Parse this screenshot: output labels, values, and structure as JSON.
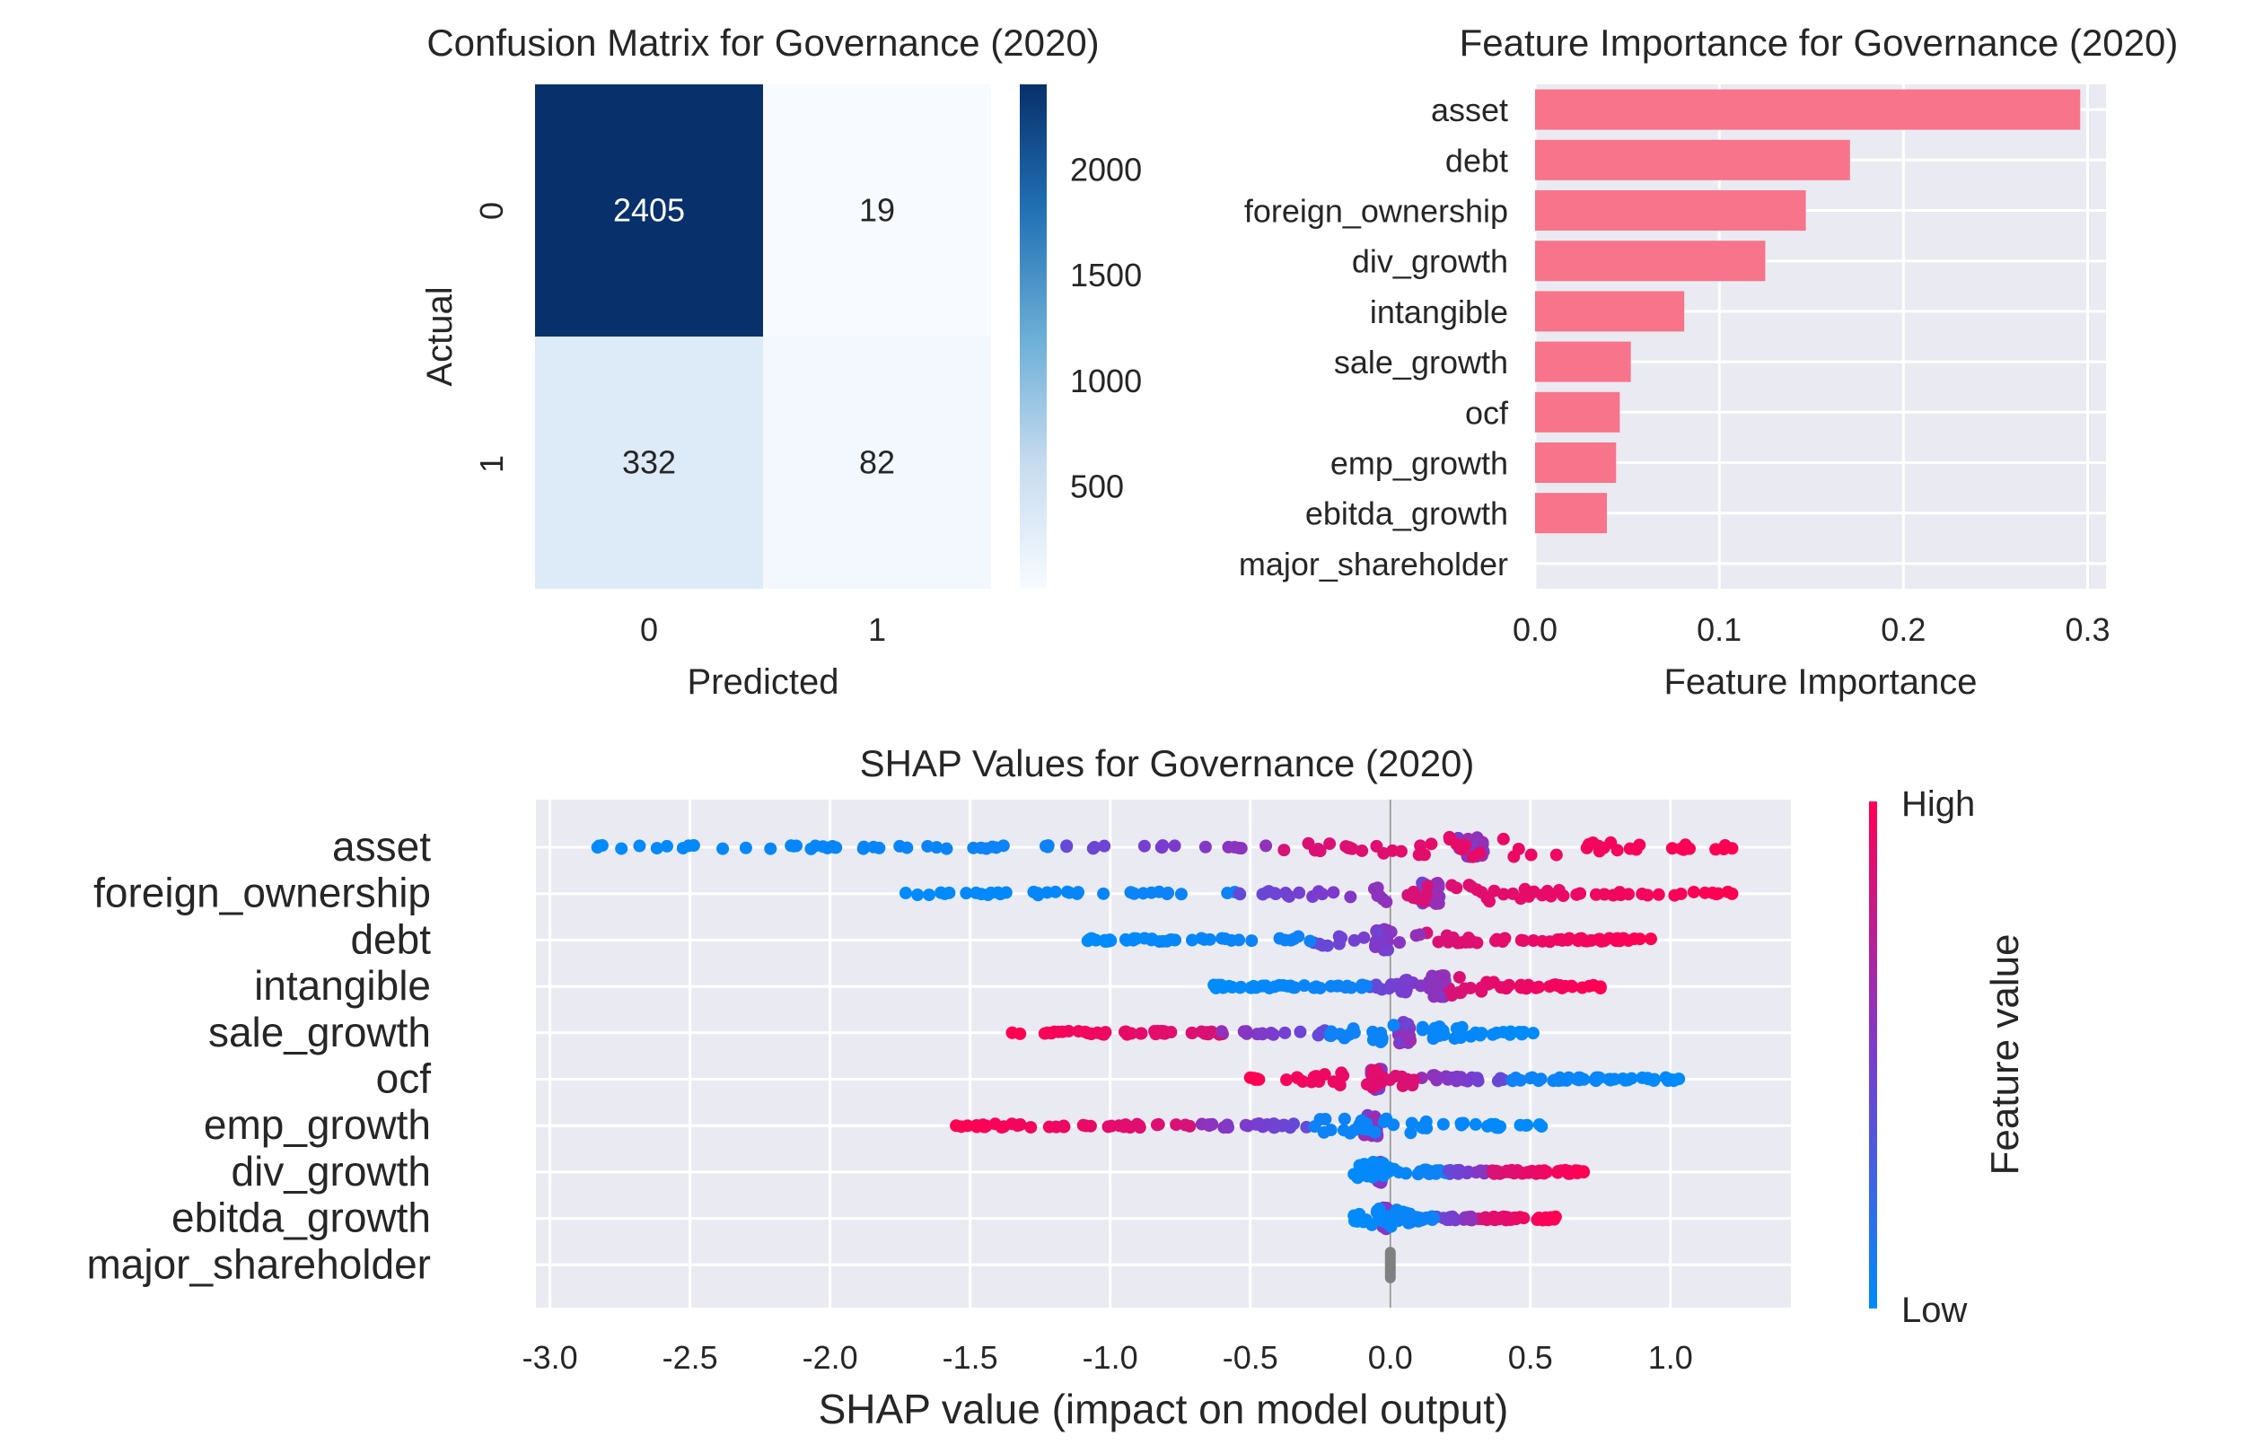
{
  "chart_data": [
    {
      "type": "heatmap",
      "title": "Confusion Matrix for Governance (2020)",
      "xlabel": "Predicted",
      "ylabel": "Actual",
      "row_labels": [
        "0",
        "1"
      ],
      "col_labels": [
        "0",
        "1"
      ],
      "values": [
        [
          2405,
          19
        ],
        [
          332,
          82
        ]
      ],
      "colormap": "Blues",
      "colorbar": {
        "min": 19,
        "max": 2405,
        "ticks": [
          500,
          1000,
          1500,
          2000
        ]
      }
    },
    {
      "type": "bar",
      "orientation": "horizontal",
      "title": "Feature Importance for Governance (2020)",
      "xlabel": "Feature Importance",
      "ylabel": "",
      "categories": [
        "asset",
        "debt",
        "foreign_ownership",
        "div_growth",
        "intangible",
        "sale_growth",
        "ocf",
        "emp_growth",
        "ebitda_growth",
        "major_shareholder"
      ],
      "values": [
        0.296,
        0.171,
        0.147,
        0.125,
        0.081,
        0.052,
        0.046,
        0.044,
        0.039,
        0.0
      ],
      "xlim": [
        0,
        0.31
      ],
      "xticks": [
        "0.0",
        "0.1",
        "0.2",
        "0.3"
      ],
      "bar_color": "#f7748a",
      "grid": true
    },
    {
      "type": "scatter",
      "subtype": "shap_beeswarm",
      "title": "SHAP Values for Governance (2020)",
      "xlabel": "SHAP value (impact on model output)",
      "ylabel": "",
      "xlim": [
        -3.05,
        1.43
      ],
      "xticks": [
        "-3.0",
        "-2.5",
        "-2.0",
        "-1.5",
        "-1.0",
        "-0.5",
        "0.0",
        "0.5",
        "1.0"
      ],
      "features": [
        {
          "name": "asset",
          "min": -2.83,
          "max": 1.22,
          "cluster": 0.29,
          "low_side": "negative"
        },
        {
          "name": "foreign_ownership",
          "min": -1.73,
          "max": 1.22,
          "cluster": 0.14,
          "low_side": "negative"
        },
        {
          "name": "debt",
          "min": -1.08,
          "max": 0.93,
          "cluster": -0.03,
          "low_side": "negative"
        },
        {
          "name": "intangible",
          "min": -0.63,
          "max": 0.75,
          "cluster": 0.18,
          "low_side": "negative"
        },
        {
          "name": "sale_growth",
          "min": -1.35,
          "max": 0.51,
          "cluster": 0.05,
          "low_side": "positive"
        },
        {
          "name": "ocf",
          "min": -0.5,
          "max": 1.03,
          "cluster": -0.05,
          "low_side": "positive"
        },
        {
          "name": "emp_growth",
          "min": -1.55,
          "max": 0.54,
          "cluster": -0.07,
          "low_side": "positive"
        },
        {
          "name": "div_growth",
          "min": -0.13,
          "max": 0.69,
          "cluster": -0.04,
          "low_side": "negative"
        },
        {
          "name": "ebitda_growth",
          "min": -0.13,
          "max": 0.59,
          "cluster": -0.02,
          "low_side": "negative"
        },
        {
          "name": "major_shareholder",
          "min": 0.0,
          "max": 0.0,
          "cluster": 0.0,
          "low_side": "none"
        }
      ],
      "low_color": "#008bfb",
      "high_color": "#ff0052",
      "colorbar": {
        "label": "Feature value",
        "high_label": "High",
        "low_label": "Low"
      }
    }
  ]
}
